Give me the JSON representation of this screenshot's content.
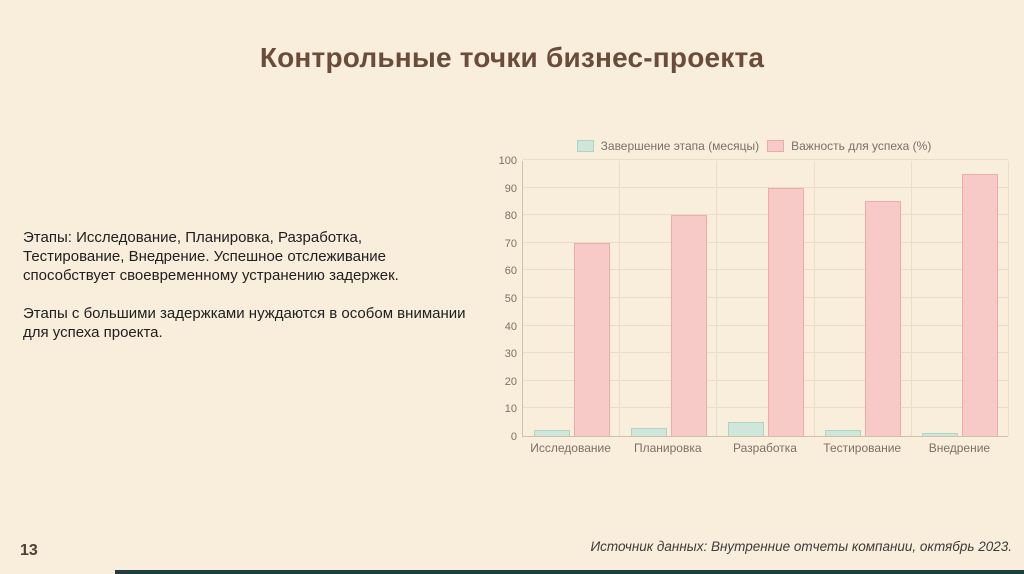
{
  "slide": {
    "title": "Контрольные точки бизнес-проекта",
    "body_paragraph_1": "Этапы: Исследование, Планировка, Разработка, Тестирование, Внедрение. Успешное отслеживание способствует своевременному устранению задержек.",
    "body_paragraph_2": "Этапы с большими задержками нуждаются в особом внимании для успеха проекта.",
    "page_number": "13",
    "source_note": "Источник данных: Внутренние отчеты компании, октябрь 2023."
  },
  "colors": {
    "background": "#f9eedb",
    "title_text": "#6a4c3b",
    "body_text": "#202020",
    "axis_text": "#7b7165",
    "gridline": "#e9ddc5",
    "axis_line": "#cfc2a9",
    "completion_fill": "#cfe7da",
    "completion_border": "#aed5c3",
    "importance_fill": "#f7c9c7",
    "importance_border": "#eeaba8",
    "bottom_bar": "#223d46"
  },
  "chart_data": {
    "type": "bar",
    "title": "",
    "categories": [
      "Исследование",
      "Планировка",
      "Разработка",
      "Тестирование",
      "Внедрение"
    ],
    "series": [
      {
        "name": "Завершение этапа (месяцы)",
        "values": [
          2,
          3,
          5,
          2,
          1
        ]
      },
      {
        "name": "Важность для успеха (%)",
        "values": [
          70,
          80,
          90,
          85,
          95
        ]
      }
    ],
    "xlabel": "",
    "ylabel": "",
    "ylim": [
      0,
      100
    ],
    "ytick_step": 10,
    "grid": true,
    "legend_position": "top"
  }
}
